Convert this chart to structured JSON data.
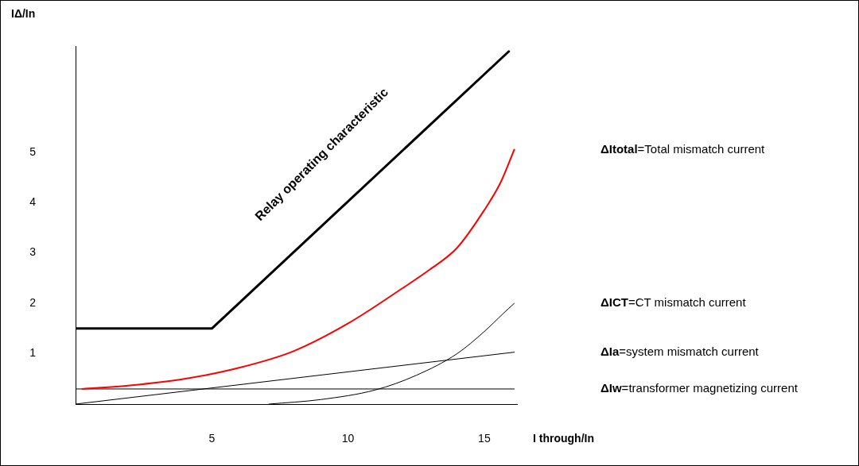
{
  "chart_data": {
    "type": "line",
    "xlabel": "I through/In",
    "ylabel": "IΔ/In",
    "xlim": [
      0,
      16.2
    ],
    "ylim": [
      0,
      7.1
    ],
    "xticks": [
      5,
      10,
      15
    ],
    "yticks": [
      1,
      2,
      3,
      4,
      5
    ],
    "grid": false,
    "legend": false,
    "marker": "none",
    "line_style": "solid",
    "annotations": [
      "Relay operating characteristic"
    ],
    "series": [
      {
        "color": "#000000",
        "x": [
          0,
          5,
          15.9
        ],
        "values": [
          1.5,
          1.5,
          7.0
        ]
      },
      {
        "name": "ΔItotal=Total mismatch current",
        "color": "#ff0000",
        "x": [
          0.25,
          2,
          4,
          6,
          8,
          10,
          12,
          13,
          14,
          15,
          15.6,
          16.1
        ],
        "values": [
          0.3,
          0.37,
          0.5,
          0.72,
          1.05,
          1.6,
          2.3,
          2.67,
          3.1,
          3.85,
          4.4,
          5.05
        ]
      },
      {
        "name": "ΔICT=CT mismatch current",
        "color": "#000000",
        "x": [
          7.1,
          9,
          11,
          12.5,
          14,
          15,
          15.7,
          16.1
        ],
        "values": [
          0,
          0.09,
          0.28,
          0.57,
          1.0,
          1.44,
          1.8,
          2.0
        ]
      },
      {
        "name": "ΔIa=system mismatch current",
        "color": "#000000",
        "x": [
          0,
          16.1
        ],
        "values": [
          0,
          1.03
        ]
      },
      {
        "name": "ΔIw=transformer magnetizing current",
        "color": "#000000",
        "x": [
          0,
          16.1
        ],
        "values": [
          0.3,
          0.3
        ]
      }
    ]
  }
}
